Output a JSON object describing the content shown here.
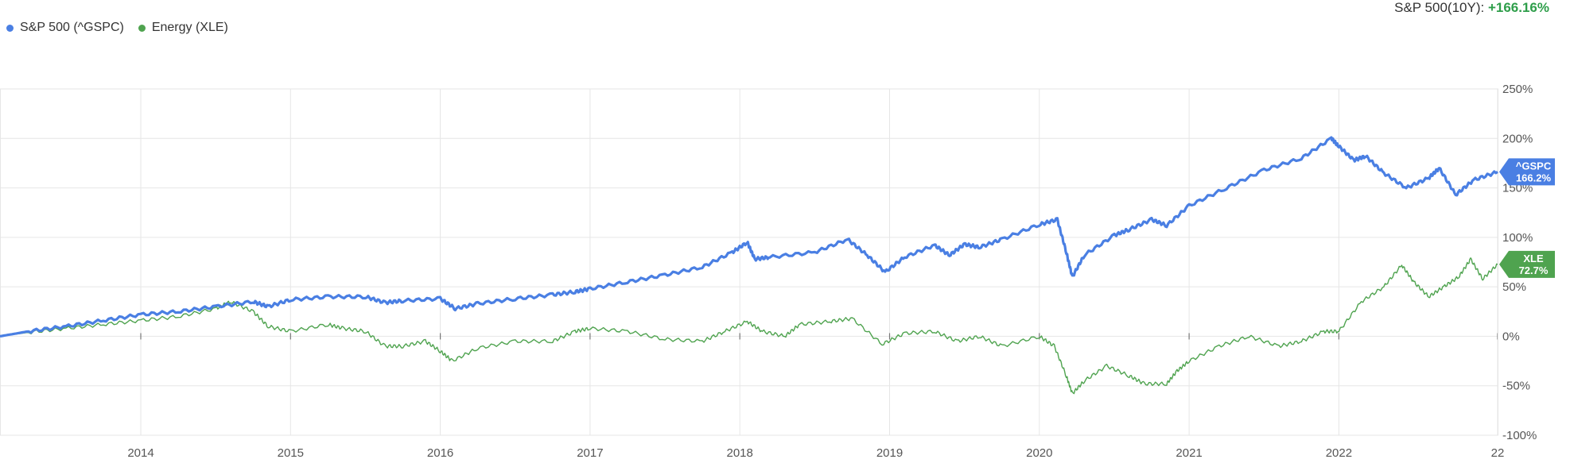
{
  "header": {
    "perf_label": "S&P 500(10Y):",
    "perf_value": "+166.16%",
    "perf_color": "#2e9e4a"
  },
  "legend": [
    {
      "label": "S&P 500 (^GSPC)",
      "color": "#4a7fe3"
    },
    {
      "label": "Energy (XLE)",
      "color": "#4fa34f"
    }
  ],
  "chart_data": {
    "type": "line",
    "x_ticks": [
      "2014",
      "2015",
      "2016",
      "2017",
      "2018",
      "2019",
      "2020",
      "2021",
      "2022",
      "22"
    ],
    "y_ticks": [
      "250%",
      "200%",
      "150%",
      "100%",
      "50%",
      "0%",
      "-50%",
      "-100%"
    ],
    "ylim": [
      -100,
      250
    ],
    "xlim": [
      2013.06,
      2023.06
    ],
    "grid": true,
    "legend_position": "top-left",
    "series": [
      {
        "name": "S&P 500 (^GSPC)",
        "color": "#4a7fe3",
        "end_tag": [
          "^GSPC",
          "166.2%"
        ],
        "points": [
          [
            2013.06,
            0
          ],
          [
            2013.25,
            5
          ],
          [
            2013.5,
            10
          ],
          [
            2013.75,
            16
          ],
          [
            2014.0,
            22
          ],
          [
            2014.25,
            25
          ],
          [
            2014.5,
            30
          ],
          [
            2014.75,
            35
          ],
          [
            2014.85,
            30
          ],
          [
            2015.0,
            37
          ],
          [
            2015.25,
            40
          ],
          [
            2015.5,
            40
          ],
          [
            2015.63,
            34
          ],
          [
            2015.75,
            36
          ],
          [
            2016.0,
            38
          ],
          [
            2016.1,
            28
          ],
          [
            2016.25,
            33
          ],
          [
            2016.5,
            38
          ],
          [
            2016.75,
            42
          ],
          [
            2016.9,
            45
          ],
          [
            2017.0,
            48
          ],
          [
            2017.25,
            55
          ],
          [
            2017.5,
            62
          ],
          [
            2017.75,
            70
          ],
          [
            2017.95,
            85
          ],
          [
            2018.05,
            95
          ],
          [
            2018.1,
            78
          ],
          [
            2018.2,
            80
          ],
          [
            2018.5,
            85
          ],
          [
            2018.72,
            98
          ],
          [
            2018.85,
            82
          ],
          [
            2018.97,
            65
          ],
          [
            2019.1,
            80
          ],
          [
            2019.3,
            92
          ],
          [
            2019.4,
            82
          ],
          [
            2019.5,
            93
          ],
          [
            2019.6,
            90
          ],
          [
            2019.75,
            98
          ],
          [
            2020.0,
            113
          ],
          [
            2020.12,
            118
          ],
          [
            2020.18,
            85
          ],
          [
            2020.22,
            60
          ],
          [
            2020.3,
            82
          ],
          [
            2020.5,
            102
          ],
          [
            2020.6,
            108
          ],
          [
            2020.75,
            118
          ],
          [
            2020.85,
            112
          ],
          [
            2021.0,
            132
          ],
          [
            2021.25,
            150
          ],
          [
            2021.5,
            168
          ],
          [
            2021.75,
            180
          ],
          [
            2021.95,
            200
          ],
          [
            2022.0,
            192
          ],
          [
            2022.1,
            178
          ],
          [
            2022.18,
            182
          ],
          [
            2022.3,
            165
          ],
          [
            2022.45,
            150
          ],
          [
            2022.6,
            160
          ],
          [
            2022.67,
            170
          ],
          [
            2022.78,
            143
          ],
          [
            2022.9,
            158
          ],
          [
            2023.06,
            166.2
          ]
        ]
      },
      {
        "name": "Energy (XLE)",
        "color": "#4fa34f",
        "end_tag": [
          "XLE",
          "72.7%"
        ],
        "points": [
          [
            2013.06,
            0
          ],
          [
            2013.25,
            4
          ],
          [
            2013.5,
            8
          ],
          [
            2013.75,
            12
          ],
          [
            2014.0,
            16
          ],
          [
            2014.25,
            20
          ],
          [
            2014.5,
            28
          ],
          [
            2014.6,
            35
          ],
          [
            2014.75,
            25
          ],
          [
            2014.85,
            10
          ],
          [
            2015.0,
            5
          ],
          [
            2015.25,
            12
          ],
          [
            2015.35,
            8
          ],
          [
            2015.5,
            5
          ],
          [
            2015.63,
            -10
          ],
          [
            2015.75,
            -10
          ],
          [
            2015.9,
            -5
          ],
          [
            2016.0,
            -15
          ],
          [
            2016.08,
            -25
          ],
          [
            2016.25,
            -12
          ],
          [
            2016.5,
            -5
          ],
          [
            2016.75,
            -5
          ],
          [
            2016.9,
            5
          ],
          [
            2017.0,
            8
          ],
          [
            2017.25,
            5
          ],
          [
            2017.5,
            -3
          ],
          [
            2017.75,
            -5
          ],
          [
            2017.9,
            5
          ],
          [
            2018.05,
            15
          ],
          [
            2018.15,
            5
          ],
          [
            2018.3,
            0
          ],
          [
            2018.4,
            12
          ],
          [
            2018.6,
            15
          ],
          [
            2018.75,
            18
          ],
          [
            2018.95,
            -8
          ],
          [
            2019.1,
            3
          ],
          [
            2019.3,
            5
          ],
          [
            2019.45,
            -5
          ],
          [
            2019.6,
            0
          ],
          [
            2019.75,
            -10
          ],
          [
            2020.0,
            0
          ],
          [
            2020.1,
            -10
          ],
          [
            2020.18,
            -40
          ],
          [
            2020.22,
            -58
          ],
          [
            2020.3,
            -45
          ],
          [
            2020.45,
            -30
          ],
          [
            2020.6,
            -40
          ],
          [
            2020.7,
            -48
          ],
          [
            2020.85,
            -48
          ],
          [
            2020.92,
            -35
          ],
          [
            2021.0,
            -25
          ],
          [
            2021.2,
            -10
          ],
          [
            2021.4,
            0
          ],
          [
            2021.6,
            -10
          ],
          [
            2021.75,
            -5
          ],
          [
            2021.9,
            5
          ],
          [
            2022.0,
            5
          ],
          [
            2022.15,
            35
          ],
          [
            2022.3,
            50
          ],
          [
            2022.42,
            72
          ],
          [
            2022.5,
            55
          ],
          [
            2022.6,
            40
          ],
          [
            2022.7,
            50
          ],
          [
            2022.8,
            60
          ],
          [
            2022.88,
            78
          ],
          [
            2022.96,
            58
          ],
          [
            2023.06,
            72.7
          ]
        ]
      }
    ]
  }
}
